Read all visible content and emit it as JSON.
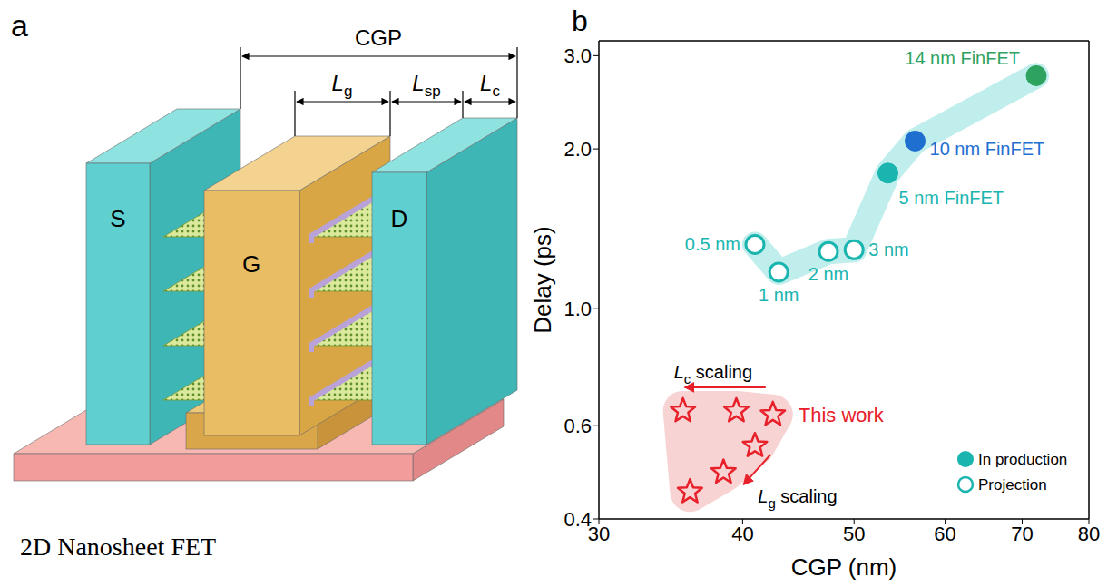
{
  "panel_a": {
    "letter": "a",
    "caption": "2D Nanosheet FET",
    "terminals": {
      "source": "S",
      "gate": "G",
      "drain": "D"
    },
    "dimensions": {
      "pitch": "CGP",
      "gate_length": "Lg",
      "spacer_length": "Lsp",
      "contact_length": "Lc"
    }
  },
  "chart_data": {
    "type": "scatter",
    "panel_label": "b",
    "x_label": "CGP (nm)",
    "y_label": "Delay (ps)",
    "log": true,
    "xlim": [
      30,
      80
    ],
    "xticks": [
      30,
      40,
      50,
      60,
      70,
      80
    ],
    "ylim": [
      0.4,
      3.2
    ],
    "yticks": [
      0.4,
      0.6,
      {
        "value": 1,
        "label": "1.0"
      },
      {
        "value": 2,
        "label": "2.0"
      },
      {
        "value": 3,
        "label": "3.0"
      }
    ],
    "grid": false,
    "legend": "lower right",
    "series": [
      {
        "name": "In production",
        "marker": "circle",
        "color": "#1bb5b0",
        "colors": [
          "#1bb5b0",
          "#1f6fd1",
          "#2ea35f"
        ],
        "x": [
          53.5,
          56.5,
          72
        ],
        "values": [
          1.8,
          2.07,
          2.75
        ],
        "labels": [
          "5 nm FinFET",
          "10 nm FinFET",
          "14 nm FinFET"
        ]
      },
      {
        "name": "Projection",
        "marker": "open_circle",
        "color": "#1bb5b0",
        "x": [
          41,
          43,
          47.5,
          50
        ],
        "values": [
          1.32,
          1.17,
          1.28,
          1.29
        ],
        "labels": [
          "0.5 nm",
          "1 nm",
          "2 nm",
          "3 nm"
        ]
      },
      {
        "marker": "open_star",
        "color": "#e8202a",
        "x": [
          35.5,
          39.5,
          42.5,
          41,
          38.5,
          36
        ],
        "values": [
          0.64,
          0.64,
          0.63,
          0.55,
          0.49,
          0.45
        ]
      }
    ],
    "annotations": [
      "This work",
      "Lc scaling",
      "Lg scaling"
    ]
  }
}
